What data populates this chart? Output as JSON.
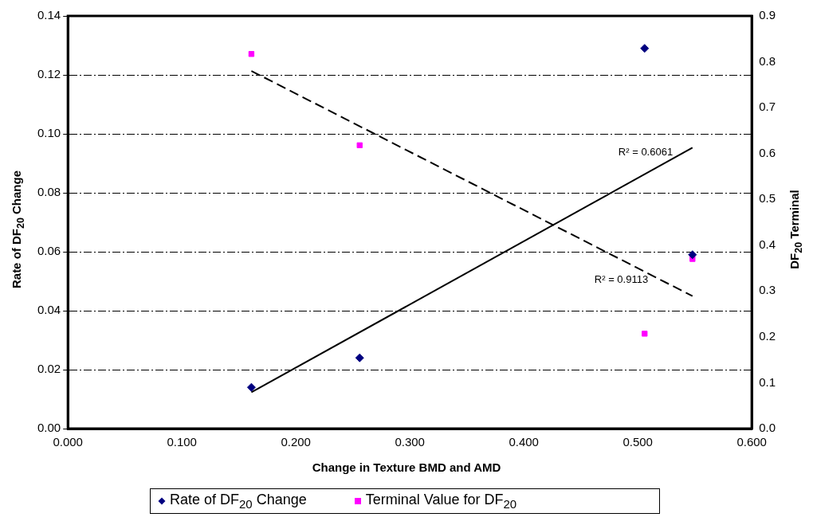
{
  "chart_data": {
    "type": "scatter",
    "xlabel": "Change in Texture BMD and AMD",
    "ylabel": "Rate of DF$_{20}$ Change",
    "y2label": "DF$_{20}$ Terminal",
    "xlim": [
      0,
      0.6
    ],
    "xticks": [
      {
        "value": 0,
        "label": "0.000"
      },
      {
        "value": 0.1,
        "label": "0.100"
      },
      {
        "value": 0.2,
        "label": "0.200"
      },
      {
        "value": 0.3,
        "label": "0.300"
      },
      {
        "value": 0.4,
        "label": "0.400"
      },
      {
        "value": 0.5,
        "label": "0.500"
      },
      {
        "value": 0.6,
        "label": "0.600"
      }
    ],
    "ylim": [
      0,
      0.14
    ],
    "yticks": [
      {
        "value": 0,
        "label": "0.00"
      },
      {
        "value": 0.02,
        "label": "0.02"
      },
      {
        "value": 0.04,
        "label": "0.04"
      },
      {
        "value": 0.06,
        "label": "0.06"
      },
      {
        "value": 0.08,
        "label": "0.08"
      },
      {
        "value": 0.1,
        "label": "0.10"
      },
      {
        "value": 0.12,
        "label": "0.12"
      },
      {
        "value": 0.14,
        "label": "0.14"
      }
    ],
    "y2lim": [
      0,
      0.9
    ],
    "y2ticks": [
      {
        "value": 0,
        "label": "0.0"
      },
      0.1,
      0.2,
      0.3,
      0.4,
      0.5,
      0.6,
      0.7,
      0.8,
      0.9
    ],
    "grid": "y",
    "legend": "bottom",
    "series": [
      {
        "name": "Rate of DF$_{20}$ Change",
        "type": "scatter",
        "marker": "diamond",
        "color": "#000080",
        "x": [
          0.161,
          0.256,
          0.506,
          0.548
        ],
        "values": [
          0.014,
          0.024,
          0.129,
          0.059
        ]
      },
      {
        "name": "Terminal Value for DF$_{20}$",
        "type": "scatter",
        "marker": "square",
        "axis": "y2",
        "color": "#ff00ff",
        "x": [
          0.161,
          0.256,
          0.506,
          0.548
        ],
        "values": [
          0.817,
          0.618,
          0.207,
          0.37
        ]
      },
      {
        "type": "line",
        "marker": "none",
        "line_style": "solid",
        "color": "#000000",
        "x": [
          0.161,
          0.548
        ],
        "values": [
          0.0123,
          0.0953
        ]
      },
      {
        "type": "line",
        "marker": "none",
        "line_style": "dashed",
        "axis": "y2",
        "color": "#000000",
        "x": [
          0.161,
          0.548
        ],
        "values": [
          0.78,
          0.289
        ]
      }
    ],
    "annotations": [
      "R² = 0.6061",
      "R² = 0.9113"
    ]
  }
}
